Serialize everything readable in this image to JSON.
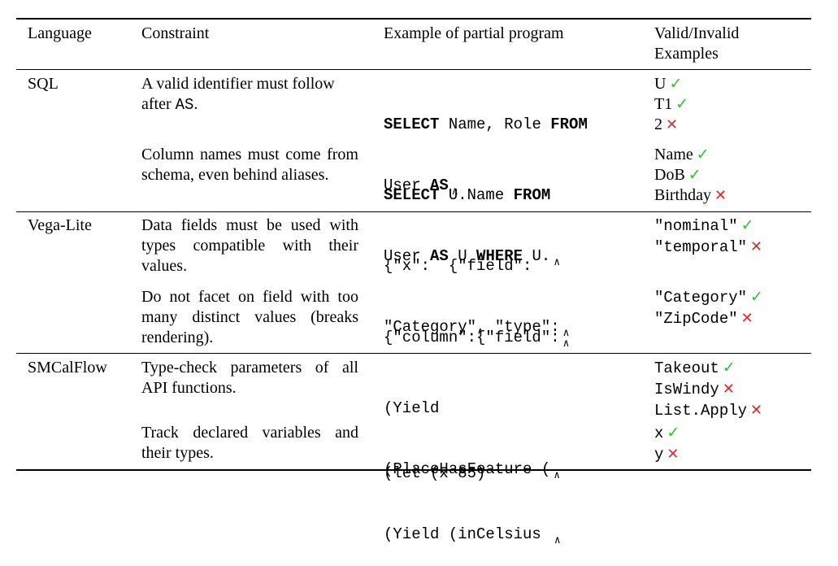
{
  "headers": {
    "language": "Language",
    "constraint": "Constraint",
    "example": "Example of partial program",
    "valid_1": "Valid/Invalid",
    "valid_2": "Examples"
  },
  "rows": [
    {
      "language": "SQL",
      "entries": [
        {
          "constraint_1": "A valid identifier must follow",
          "constraint_2": "after ",
          "constraint_2_code": "AS",
          "constraint_2_end": ".",
          "program": [
            [
              {
                "t": "SELECT",
                "kw": true
              },
              {
                "t": " Name, Role ",
                "kw": false
              },
              {
                "t": "FROM",
                "kw": true
              }
            ],
            [
              {
                "t": "User ",
                "kw": false
              },
              {
                "t": "AS",
                "kw": true
              }
            ]
          ],
          "examples": [
            {
              "text": "U",
              "valid": true,
              "mono": false
            },
            {
              "text": "T1",
              "valid": true,
              "mono": false
            },
            {
              "text": "2",
              "valid": false,
              "mono": false
            }
          ]
        },
        {
          "constraint": "Column names must come from schema, even behind aliases.",
          "program": [
            [
              {
                "t": "SELECT",
                "kw": true
              },
              {
                "t": " U.Name ",
                "kw": false
              },
              {
                "t": "FROM",
                "kw": true
              }
            ],
            [
              {
                "t": "User ",
                "kw": false
              },
              {
                "t": "AS",
                "kw": true
              },
              {
                "t": " U ",
                "kw": false
              },
              {
                "t": "WHERE",
                "kw": true
              },
              {
                "t": " U.",
                "kw": false
              }
            ]
          ],
          "examples": [
            {
              "text": "Name",
              "valid": true,
              "mono": false
            },
            {
              "text": "DoB",
              "valid": true,
              "mono": false
            },
            {
              "text": "Birthday",
              "valid": false,
              "mono": false
            }
          ]
        }
      ]
    },
    {
      "language": "Vega-Lite",
      "entries": [
        {
          "constraint": "Data fields must be used with types compatible with their values.",
          "program_lines": [
            "{\"x\":  {\"field\":",
            "\"Category\", \"type\":"
          ],
          "examples": [
            {
              "text": "\"nominal\"",
              "valid": true,
              "mono": true
            },
            {
              "text": "\"temporal\"",
              "valid": false,
              "mono": true
            }
          ]
        },
        {
          "constraint": "Do not facet on field with too many distinct values (breaks rendering).",
          "program_lines": [
            "{\"column\":{\"field\":"
          ],
          "examples": [
            {
              "text": "\"Category\"",
              "valid": true,
              "mono": true
            },
            {
              "text": "\"ZipCode\"",
              "valid": false,
              "mono": true
            }
          ]
        }
      ]
    },
    {
      "language": "SMCalFlow",
      "entries": [
        {
          "constraint": "Type-check parameters of all API functions.",
          "program_lines": [
            "(Yield",
            "(PlaceHasFeature ("
          ],
          "examples": [
            {
              "text": "Takeout",
              "valid": true,
              "mono": true
            },
            {
              "text": "IsWindy",
              "valid": false,
              "mono": true
            },
            {
              "text": "List.Apply",
              "valid": false,
              "mono": true
            }
          ]
        },
        {
          "constraint": "Track declared variables and their types.",
          "program_lines": [
            "(let (x 85)",
            "(Yield (inCelsius"
          ],
          "examples": [
            {
              "text": "x",
              "valid": true,
              "mono": true
            },
            {
              "text": "y",
              "valid": false,
              "mono": true
            }
          ]
        }
      ]
    }
  ],
  "symbols": {
    "valid": "✓",
    "invalid": "✕",
    "caret": "∧"
  }
}
